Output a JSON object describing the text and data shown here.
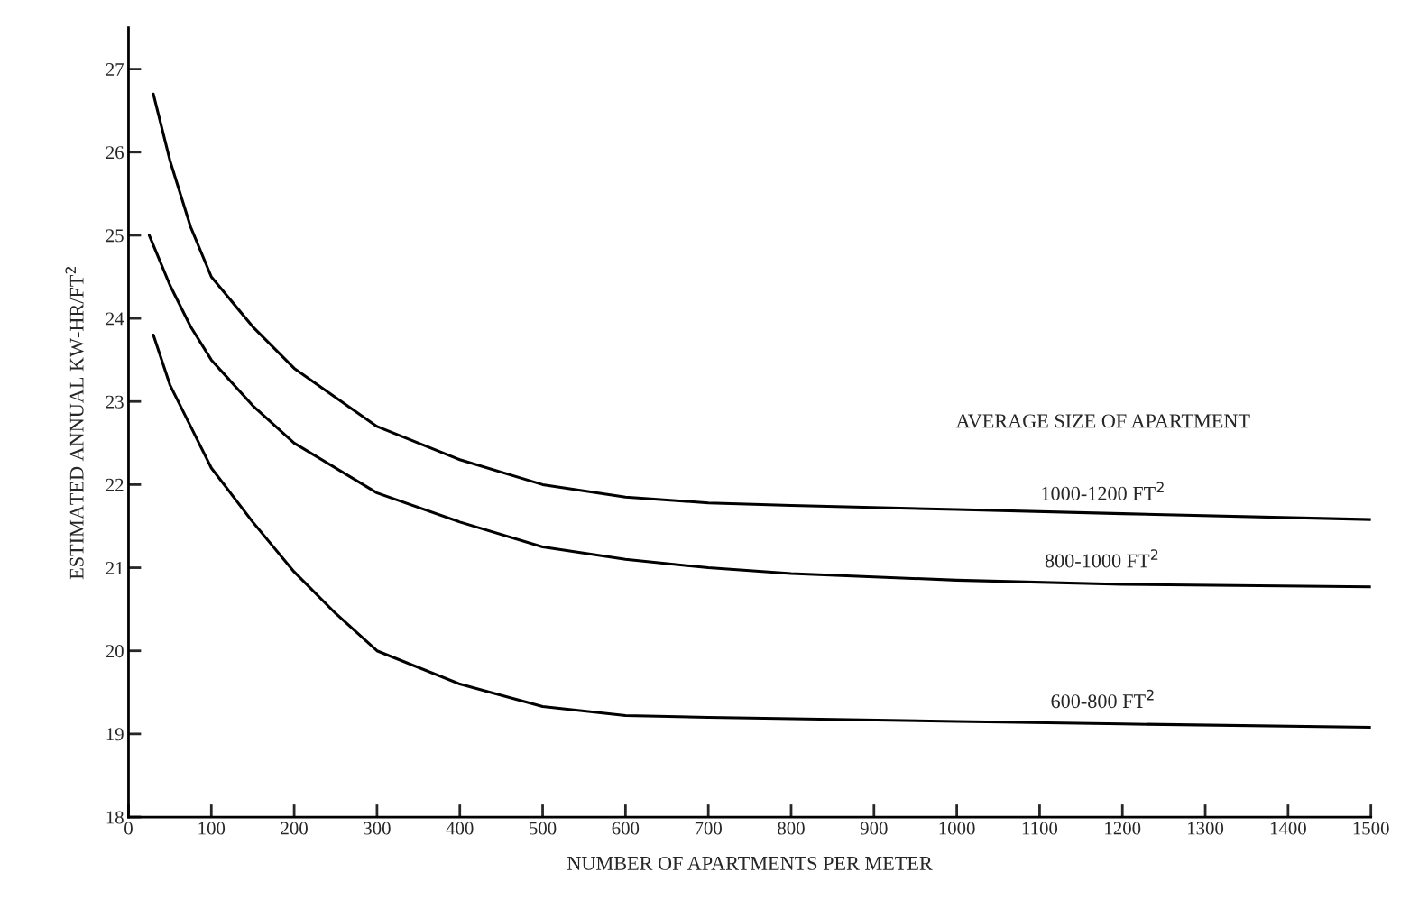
{
  "chart_data": {
    "type": "line",
    "xlabel": "NUMBER OF APARTMENTS PER METER",
    "ylabel": "ESTIMATED ANNUAL KW-HR/FT$^{2}$",
    "legend_title": "AVERAGE SIZE OF APARTMENT",
    "xlim": [
      0,
      1500
    ],
    "ylim": [
      18,
      27.5
    ],
    "xticks": [
      0,
      100,
      200,
      300,
      400,
      500,
      600,
      700,
      800,
      900,
      1000,
      1100,
      1200,
      1300,
      1400,
      1500
    ],
    "yticks": [
      18,
      19,
      20,
      21,
      22,
      23,
      24,
      25,
      26,
      27
    ],
    "grid": false,
    "legend": false,
    "marker": "none",
    "line_style": "solid",
    "series": [
      {
        "name": "1000-1200 FT$^{2}$",
        "color": "#000000",
        "x": [
          30,
          50,
          75,
          100,
          150,
          200,
          300,
          400,
          500,
          600,
          700,
          800,
          1000,
          1200,
          1500
        ],
        "values": [
          26.7,
          25.9,
          25.1,
          24.5,
          23.9,
          23.4,
          22.7,
          22.3,
          22.0,
          21.85,
          21.78,
          21.75,
          21.7,
          21.65,
          21.58
        ]
      },
      {
        "name": "800-1000 FT$^{2}$",
        "color": "#000000",
        "x": [
          25,
          50,
          75,
          100,
          150,
          200,
          300,
          400,
          500,
          600,
          700,
          800,
          1000,
          1200,
          1500
        ],
        "values": [
          25.0,
          24.4,
          23.9,
          23.5,
          22.95,
          22.5,
          21.9,
          21.55,
          21.25,
          21.1,
          21.0,
          20.93,
          20.85,
          20.8,
          20.77
        ]
      },
      {
        "name": "600-800 FT$^{2}$",
        "color": "#000000",
        "x": [
          30,
          50,
          75,
          100,
          150,
          200,
          250,
          300,
          400,
          500,
          600,
          700,
          1000,
          1200,
          1500
        ],
        "values": [
          23.8,
          23.2,
          22.7,
          22.2,
          21.55,
          20.95,
          20.45,
          20.0,
          19.6,
          19.33,
          19.22,
          19.2,
          19.15,
          19.12,
          19.08
        ]
      }
    ]
  }
}
